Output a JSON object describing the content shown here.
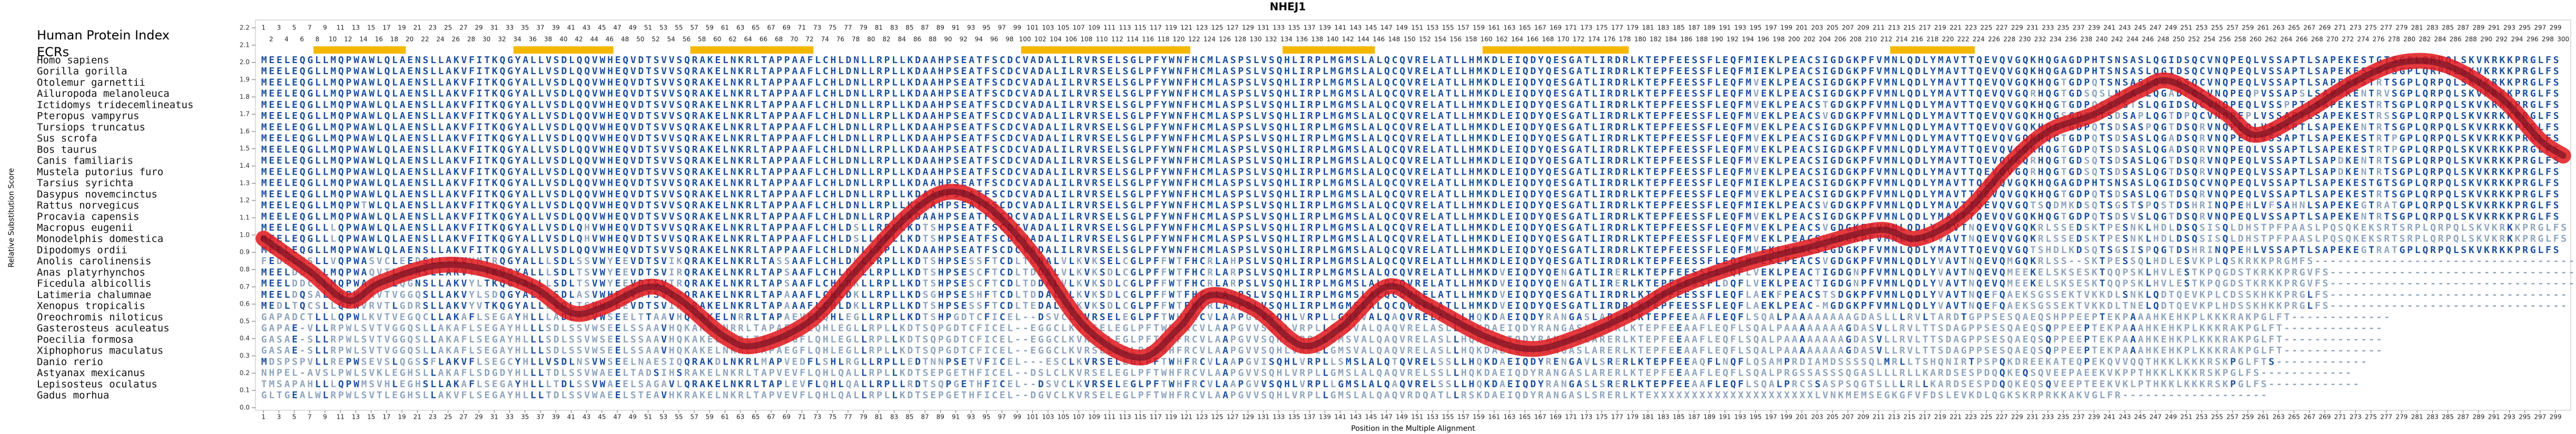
{
  "chart_data": {
    "type": "line",
    "title": "NHEJ1",
    "ylabel": "Relative Substitution Score",
    "xlabel": "Position in the Multiple Alignment",
    "color": "#e0161b",
    "xlim": [
      1,
      300
    ],
    "ylim": [
      0,
      2.2
    ],
    "yticks": [
      {
        "value": 0,
        "label": "0.0"
      },
      0.1,
      0.2,
      0.3,
      0.4,
      0.5,
      0.6,
      0.7,
      0.8,
      0.9,
      {
        "value": 1,
        "label": "1.0"
      },
      1.1,
      1.2,
      1.3,
      1.4,
      1.5,
      1.6,
      1.7,
      1.8,
      1.9,
      {
        "value": 2,
        "label": "2.0"
      },
      2.1,
      2.2
    ],
    "xticks": [
      1,
      2,
      3,
      4,
      5,
      6,
      7,
      8,
      9,
      10,
      11,
      12,
      13,
      14,
      15,
      16,
      17,
      18,
      19,
      20,
      21,
      22,
      23,
      24,
      25,
      26,
      27,
      28,
      29,
      30,
      31,
      32,
      33,
      34,
      35,
      36,
      37,
      38,
      39,
      40,
      41,
      42,
      43,
      44,
      45,
      46,
      47,
      48,
      49,
      50,
      51,
      52,
      53,
      54,
      55,
      56,
      57,
      58,
      59,
      60,
      61,
      62,
      63,
      64,
      65,
      66,
      67,
      68,
      69,
      70,
      71,
      72,
      73,
      74,
      75,
      76,
      77,
      78,
      79,
      80,
      81,
      82,
      83,
      84,
      85,
      86,
      87,
      88,
      89,
      90,
      91,
      92,
      93,
      94,
      95,
      96,
      97,
      98,
      99,
      100,
      101,
      102,
      103,
      104,
      105,
      106,
      107,
      108,
      109,
      110,
      111,
      112,
      113,
      114,
      115,
      116,
      117,
      118,
      119,
      120,
      121,
      122,
      123,
      124,
      125,
      126,
      127,
      128,
      129,
      130,
      131,
      132,
      133,
      134,
      135,
      136,
      137,
      138,
      139,
      140,
      141,
      142,
      143,
      144,
      145,
      146,
      147,
      148,
      149,
      150,
      151,
      152,
      153,
      154,
      155,
      156,
      157,
      158,
      159,
      160,
      161,
      162,
      163,
      164,
      165,
      166,
      167,
      168,
      169,
      170,
      171,
      172,
      173,
      174,
      175,
      176,
      177,
      178,
      179,
      180,
      181,
      182,
      183,
      184,
      185,
      186,
      187,
      188,
      189,
      190,
      191,
      192,
      193,
      194,
      195,
      196,
      197,
      198,
      199,
      200,
      201,
      202,
      203,
      204,
      205,
      206,
      207,
      208,
      209,
      210,
      211,
      212,
      213,
      214,
      215,
      216,
      217,
      218,
      219,
      220,
      221,
      222,
      223,
      224,
      225,
      226,
      227,
      228,
      229,
      230,
      231,
      232,
      233,
      234,
      235,
      236,
      237,
      238,
      239,
      240,
      241,
      242,
      243,
      244,
      245,
      246,
      247,
      248,
      249,
      250,
      251,
      252,
      253,
      254,
      255,
      256,
      257,
      258,
      259,
      260,
      261,
      262,
      263,
      264,
      265,
      266,
      267,
      268,
      269,
      270,
      271,
      272,
      273,
      274,
      275,
      276,
      277,
      278,
      279,
      280,
      281,
      282,
      283,
      284,
      285,
      286,
      287,
      288,
      289,
      290,
      291,
      292,
      293,
      294,
      295,
      296,
      297,
      298,
      299,
      300
    ],
    "x": [
      1,
      7,
      12,
      16,
      23,
      29,
      36,
      41,
      45,
      51,
      55,
      61,
      65,
      72,
      78,
      85,
      90,
      95,
      101,
      108,
      115,
      120,
      124,
      130,
      136,
      141,
      147,
      152,
      160,
      166,
      172,
      179,
      185,
      194,
      202,
      211,
      216,
      222,
      228,
      233,
      239,
      245,
      249,
      256,
      260,
      266,
      273,
      279,
      285,
      292,
      297,
      300
    ],
    "values": [
      0.98,
      0.79,
      0.62,
      0.72,
      0.82,
      0.81,
      0.7,
      0.55,
      0.58,
      0.7,
      0.63,
      0.41,
      0.36,
      0.5,
      0.79,
      1.12,
      1.25,
      1.17,
      0.89,
      0.46,
      0.29,
      0.46,
      0.65,
      0.57,
      0.36,
      0.46,
      0.7,
      0.6,
      0.41,
      0.34,
      0.41,
      0.55,
      0.7,
      0.84,
      0.93,
      1.03,
      0.98,
      1.12,
      1.41,
      1.6,
      1.7,
      1.84,
      1.89,
      1.71,
      1.58,
      1.7,
      1.89,
      2.0,
      1.98,
      1.79,
      1.55,
      1.46
    ]
  },
  "alignment": {
    "index_label": "Human Protein Index",
    "ecr_label": "ECRs",
    "ecrs": [
      [
        8,
        19
      ],
      [
        34,
        46
      ],
      [
        57,
        72
      ],
      [
        100,
        121
      ],
      [
        134,
        145
      ],
      [
        160,
        178
      ],
      [
        213,
        223
      ]
    ],
    "species": [
      "Homo sapiens",
      "Gorilla gorilla",
      "Otolemur garnettii",
      "Ailuropoda melanoleuca",
      "Ictidomys tridecemlineatus",
      "Pteropus vampyrus",
      "Tursiops truncatus",
      "Sus scrofa",
      "Bos taurus",
      "Canis familiaris",
      "Mustela putorius furo",
      "Tarsius syrichta",
      "Dasypus novemcinctus",
      "Rattus norvegicus",
      "Procavia capensis",
      "Macropus eugenii",
      "Monodelphis domestica",
      "Dipodomys ordii",
      "Anolis carolinensis",
      "Anas platyrhynchos",
      "Ficedula albicollis",
      "Latimeria chalumnae",
      "Xenopus tropicalis",
      "Oreochromis niloticus",
      "Gasterosteus aculeatus",
      "Poecilia formosa",
      "Xiphophorus maculatus",
      "Danio rerio",
      "Astyanax mexicanus",
      "Lepisosteus oculatus",
      "Gadus morhua"
    ],
    "sequences": [
      "MEELEQGLLMQPWAWLQLAENSLLAKVFITKQGYALLVSDLQQVWHEQVDTSVVSQRAKELNKRLTAPPAAFLCHLDNLLRPLLKDAAHPSEATFSCDCVADALILRVRSELSGLPFYWNFHCMLASPSLVSQHLIRPLMGMSLALQCQVRELATLLHMKDLEIQDYQESGATLIRDRLKTEPFEESSFLEQFMIEKLPEACSIGDGKPFVMNLQDLYMAVTTQEVQVGQKHQGAGDPHTSNSASLQGIDSQCVNQPEQLVSSAPTLSAPEKESTGTSGPLQRPQLSKVKRKKPRGLFS",
      "MEELEQGLLMQPWAWLQLAENSLLAKVFITKQGYALLVSDLQQVWHEQVDTSVVSQRAKELNKRLTAPPAAFLCHLDNLLRPLLKDAAHPSEATFSCDCVADALILRVRSELSGLPFYWNFHCMLASPSLVSQHLIRPLMGMSLALQCQVRELATLLHMKDLEIQDYQESGATLIRDRLKTEPFEESSFLEQFMIEKLPEACSIGDGKPFVMNLQDLYMAVTTQEVQVGQKHQGAGDPHTSNSASLQGIDSQCVNQPEQLVSSAPTLSAPEKESTGTSGPLQRPQLSKVKRKKPRGLFS",
      "MEELEQGLLMQPWAWLQLAENSLLAKVFITKQGYALLVSDLQQVWHEQVDTSVVSQRAKELNKRLTAPPAAFLCHLDNLLRPLLKDAAHPSEATFSCDCVADALILRVRSELSGLPFYWNFHCMLASPSLVSQHLIRPLMGMSLALQCQVRELATLLHMKDLEIQDYQESGATLIRDRLKTEPFEESSFLEQFMVEKLPEACSIGDGKPFVMNLQDLYMAVTTQEVQVGQKHQGTGDPQTSNSASLQGTDSQCVNQPEQLVSSAPTLSAPEKESTRTSGPLQRPQLSKVKRKKPRGLFS",
      "MEELEQGLLMQPWAWLQLAENSLLAKVFITKQGYALLVSDLQQVWHEQVDTSVVSQRAKELNKRLTAPPAAFLCHLDNLLRPLLKDAAHPSEATFSCDCVADALILRVRSELSGLPFYWNFHCMLASPSLVSQHLIRPLMGMSLALQCQVRELATLLHMKDLEIQDYQESGATLIRDRLKTEPFEESSFLEQFMVEKLPEACSIGDGKPFVMNLQDLYMAVTTQEVQVGQRHQGTGDSQSLNTATLQGADPQCVNQPEQPVSSAPSLSAPDKENTRVSGPLQRPQLSKVKRKKPRGLFS",
      "MEELEQGLLMQPWAWLQLAENSLLAKVFITKQGYALLVSDLQQVWHEQVDTSVVSQRAKELNKRLTAPPAAFLCHLDNLLRPLLKDAAHPSEATFSCDCVADALILRVRSELSGLPFYWNFHCMLASPSLVSQHLIRPLMGMSLALQCQVRELATLLHMKDLEIQDYQESGATLIRDRLKTEPFEESSFLEQFMVEKLPEACSTGDGKPFVMNLQDLYMAVTTQEVQVGQKHQGTGDPQSSDSTSLQGIDSQCVNQPEQLVSSPPTLSAPEKESTRTSGPLQRPQLSKVKRKKPRGLFS",
      "MEELEQGLLMQPWAWLQLAENSLLAKVFITKQGYALLVSDLQQVWHEQVDTSVVSQRAKELNKRLTAPPAAFLCHLDNLLRPLLKDAAHPSEATFSCDCVADALILRVRSELSGLPFYWNFHCMLASPSLVSQHLIRPLMGMSLALQCQVRELATLLHMKDLEIQDYQESGATLIRDRLKTEPFEESSFLEQFMVEKLPEACSVGDGKPFVMNLQDLYMAVTTQEVQVGQKHQGSGDSQTSDSAPLQGTDPQCVNQPEPLVSSAPTLSAPEKESTRSSGPLQRPQLSKVKRKKPRGLFS",
      "MEELEQGLLMQPWAWLQLAENSLLAKVFITKQGYALLVSDLQQVWHEQVDTSVVSQRAKELNKRLTAPPAAFLCHLDNLLRPLLKDAAHPSEATFSCDCVADALILRVRSELSGLPFYWNFHCMLASPSLVSQHLIRPLMGMSLALQCQVRELATLLHMKDLEIQDYQESGATLIRDRLKTEPFEESSFLEQFMVEKLPEACSIGDGKPFVMNLQDLYMAVTTQEVQVGQKHQGTGDPQTSDSASPQGTDSQRVNQPEQLVSSAPTLSAPEKENTRTSGPLQRPQLSKVKRKKPRGLFS",
      "MEELEQGLLMQPWAWLQLAENSLLAKVFITKQGYALLVSDLQQVWHEQVDTSVVSQRAKELNKRLTAPPAAFLCHLDNLLRPLLKDAAHPSEATFSCDCVADALILRVRSELSGLPFYWNFHCMLASPSLVSQHLIRPLMGMSLALQCQVRELATLLHMKDLEIQDYQESGATLIRDRLKTEPFEESSFLEQFMVEKLPEACSIGDGKPFVMNLQDLYMAVTTQEVQVGQKHQGTGDPQTSDSASLQGADSQRVNQPEQLVSSAPTLSAPEKESTRTPGPLQRPQLSKVKRKKPRGLFS",
      "MEELEQGLLMQPWAWLQLAENSLLAKVFITKQGYALLVSDLQQVWHEQVDTSVVSQRAKELNKRLTAPPAAFLCHLDNLLRPLLKDAAHPSEATFSCDCVADALILRVRSELSGLPFYWNFHCMLASPSLVSQHLIRPLMGMSLALQCQVRELATLLHMKDLEIQDYQESGATLIRDRLKTEPFEESSFLEQFMVEKLPEACSIGDGKPFVMNLQDLYMAVTTQEVQVGQKHQGTGDPQTSDSASLQGADSQRVNQPEQLVSSAPTLSAPEKESTRTPGPLQRPQLSKVKRKKPRGLFS",
      "MEELEQGLLMQPWAWLQLAENSLLAKVFITKQGYALLVSDLQQVWHEQVDTSVVSQRAKELNKRLTAPPAAFLCHLDNLLRPLLKDAAHPSEATFSCDCVADALILRVRSELSGLPFYWNFHCMLASPSLVSQHLIRPLMGMSLALQCQVRELATLLHMKDLEIQDYQESGATLIRDRLKTEPFEESSFLEQFMVEKLPEACSIGDGKPFVMNLQDLYMAVTTQEVQVGQRHQGTGDSQTSDSASLQGTDSQRVNQPEQLVSSAPTLSAPDKENTRTSGPLQRPQLSKVKRKKPRGLFS",
      "MEELEQGLLMQPWAWLQLAENSLLAKVFITKQGYALLVSDLQQVWHEQVDTSVVSQRAKELNKRLTAPPAAFLCHLDNLLRPLLKDAAHPSEATFSCDCVADALILRVRSELSGLPFYWNFHCMLASPSLVSQHLIRPLMGMSLALQCQVRELATLLHMKDLEIQDYQESGATLIRDRLKTEPFEESSFLEQFMVEKLPEACSIGDGKPFVMNLQDLYMAVTTQEVQVGQRHQGTGDSQTSDSASLQGTDSQRVNQPEQLVSSAPTLSAPDKENTRTSGPLQRPQLSKVKRKKPRGLFS",
      "MEELEQGLLMQPWAWLQLAENSLLAKVFITKQGYALLVSDLQQVWHEQVDTSVVSQRAKELNKRLTAPPAAFLCHLDNLLRPLLKDAAHPSEATFSCDCVADALILRVRSELSGLPFYWNFHCMLASPSLVSQHLIRPLMGMSLALQCQVRELATLLHMKDLEIQDYQESGATLIRDRLKTEPFEESSFLEQFMIEKLPEACSIGDGKPFVMNLQDLYMAVTTQEVQVGQKHQGAGDPHTSNSASLQGIDSQCVNQPEQLVSSAPTLSAPEKESTGTSGPLQRPQLSKVKRKKPRGLFS",
      "MEELEQGLLMQPWAWLQLAENSLLAKVFITKQGYALLVSDLQQVWHEQVDTSVVSQRAKELNKRLTAPPAAFLCHLDNLLRPLLKDAAHPSEATFSCDCVADALILRVRSELSGLPFYWNFHCMLASPSLVSQHLIRPLMGMSLALQCQVRELATLLHMKDLEIQDYQESGATLIRDRLKTEPFEESSFLEQFMVEKLPEACSIGDGKPFVMNLQDLYMAVTTQEVQVGQKHQGTGDPQTSDSASLQGTDSQRVNQPEQLVSSAPTLSAPEKESTRTSGPLQRPQLSKVKRKKPRGLFS",
      "MEELEQGLLMQPWTWLQLAENSLLAKVFITKQGYALLVSDLQQVWHEQVDTSVVSQRAKELNKRLTAPPAAFLCHLDNLLRPLLKDTAHPSEATFSCDCVADALILRVRSELSGLPFYWNFHCMLASPSLVSQHLIRPLMGMSLALQCQVRELATLLHMKDLEIQDYQESGATLIRDRLKTEPFEESSFLEQFMIEKLPEACSVGDGKPFVMNLQDLYMAVTTQEVQVGQTSQDMKDSQTSGSTSPQSTDSHRINQPEHLVFSAHNLSAPEKEGTRATGPLQRPQLSKVKRKKPRGLFS",
      "MEELEQGLLMQPWAWLQLAENSLLAKVFITKQGYALLVSDLQQVWHEQVDTSVVSQRAKELNKRLTAPPAAFLCHLDNLLRPLLKDAAHPSEATFSCDCVADALILRVRSELSGLPFYWNFHCMLASPSLVSQHLIRPLMGMSLALQCQVRELATLLHMKDLEIQDYQESGATLIRDRLKTEPFEESSFLEQFMVEKLPEACSIGDGKPFVMNLQDLYMAVTTQEVQVGQKHQGTGDPQTSDSVSLQGTDSQRVNQPEQLVSSAPTLSAPEKENTRTSGPLQRPQLSKVKRKKPRGLFS",
      "MEELEQGLLLQPWAWLQLAENSLLAKVFITKQGYALLVSDLQHVWHEQVDTSVVSQRAKELNKRLTAPPAAFLCHLDSLLRPLLKDTSHPSEATFSCDCVADALILRVRSELSGLPFYWNFHCMLASPSLVSQHLIRPLMGMSLALQCQVRELATLLHMKDLEIQDYQESGATLIRDRLKTEPFEESSFLEQFMVEKLPEACSVGDGKPFVMNLQDLYVAVTNQEVQVGQKRLSSEDSKTPESNKLHDLDSQSISQLDHSTPFPAASLPQSQKEKSRTSRPLQRPQLSKVKRKKPRGLFS",
      "MEELEQGLLLQPWAWLQLAENSLLAKVFITKQGYALLVSDLQHVWHEQVDTSVVSQRAKELNKRLTAPPAAFLCHLDSLLRPLLKDTSHPSEATFSCDCVADALILRVRSELSGLPFYWNFHCMLASPSLVSQHLIRPLMGMSLALQCQVRELATLLHMKDLEIQDYQESGATLIRDRLKTEPFEESSFLEQFMVEKLPEACSVGDGKPFVMNLQDLYVAVTNQEVQVGQKRLSSEDSKTPESNKLHDLDSQSISQLDHSTPFPAASLPQSQKEKSRTSRPLQRPQLSKVKRKKPRGLFS",
      "MEELEQGLLMQPWAWLQLAENSLLAKVFITKQGYALLVSDLQQVWHEQVDTSVVSQRAKELNKRLTAPPAAFLCHLDNLLRPLLKDAAHPSEATFSCDCVADALILRVRSELSGLPFYWNFHCMLASPSLVSQHLIRPLMGMSLALQCQVRELATLLHMKDLEIQDYQESGATLIRDRLKTEPFEESSFLEQFMVEKLPEACSIGDGKPFVMNLQDLYMAVTTQEVQVGQTSHDLKDSQTSGSISPQGTDSHRINQPEHLVSSAPTLSAPEKEGTRATGPLQRPQLSKVKRKKPRGLFS",
      "FEDMLNSLLVQPWASVCLEEDSLLSKVYMTRQGYALLLSDLSSVWYEEVDTSVIKQRAKELNKRLTASSAAFLCHLDKLLRPLLKDTSHPSESSFTCDLTDDALVLKVKSELCGLPFFWTFHCRLAHPSLVSQHLIRPLMGMSLALQCQVRELATLLHMKDLEIQDYQESGATLIRDRLKTEPFEESSFLEQFMVEKLPEACSVGDGKPFVMNLQDLYVAVTNQEVQMGQKRLSS--SKTPESSQLHDLESVKPLQSKRKKPRGMFS-------------------------------------",
      "MEELDDCSLMQPWAQVTLQGNSLLAKVYLTKQGYALLLSDLTSVWYEEVDTSVIRQRAKELNKRLTAPSAAFLCHLDKLLRPLLKDTSHPSESCFTCDLTDDALVLKVKSDLCGLPFFWTFHCRLARPSLVSQHLIRPLMGMSLALQCQVRELATLLHMKDVEIQDYQENGATLIRERLKTEPFEESSFLDQFLVEKLPEACTIGDGNPFVMNLQDLYVAVTNQEVQMEEKELSKSESKTQQPSKLHVLESTKPQGDSTKRKKPRGVFS----------------------------------",
      "MEELDDCSLMQPWAQVTLQGNSLLAKVYLTKQGYALLLSDLTSVWYEEVDTSVIRQRAKELNKRLTAPSAAFLCHLDKLLRPLLKDTSHPSESCFTCDLTDDALVLKVKSDLCGLPFFWTFHCRLARPSLVSQHLIRPLMGMSLALQCQVRELATLLHMKDVEIQDYQENGATLIRERLKTEPFEESSFLDQFLVEKLPEACTIGDGNPFVMNLQDLYVAVTNQEVQMEEKELSKSESKTQQPSKLHVLESTKPQGDSTKRKKPRGVFS----------------------------------",
      "MEELDQSALLQPWTRVTVGGQSLLAKVYLSDQGYALLLSDLASVWHEEVHTSVIRQRAKELNKRLTAPAAAFLCHLDKLLRPLLKDSGHPSESHFTCDLTDDALVLKVKSDLCGLPFFWTFHCRLAHPSLVSQHLIRPLMGMSLALQCQVRELATLLHMKDVEIQDYQESGATLIRDRLKTEPFEESSFLEQFLAEKFPEACSTSDGKPFVMNLQDLYVAVTNQEFQAEKSGSSEKTVKKDLSNKLQDTQEVKPLCDSSKHKKPRGLFS-------------------------------",
      "MEDLTQCSLLQPWVRVTLGDRSLLAKVYVTKQGYALLLSDLTSVWYEEVDTSVIRERAKELNKRLTAPAAAFLCHLDKLLRPLLKDTSHPSESSFTCDLTEDALVLKVKSDLCGLPFFWTFHCRLARPSLVSQHLIRPLMGMSLALQCQVRELATLLHMKDVEIQDYQESGATLIRDRLKTEPFEESSFLEQFLAEKLPEAC-MGDGKPFVMNLQDLYVAVTNQEFQAEKSGSSEKTVKKDLTNELQDTQEVKPLHDSSKHKKPRGLFS-------------------------------",
      "GAPADCTLLLQPWLKVTVEGQCLLAKAFLSEGAYHLLLADLASVWSEELTTAAVHQKAKELNRRLTAPAEVFLQHLEGLLRPLLKDTSHPGDTCFICEL--DSVCLKVRSELEGLPFTWHFRCVLAAPGVVSQHLVRPLLGMSVALQAQVRELASLLHQKDAEIQDYRANGASLARERLKTEPFEEAAFLEQFLSQALPAAAAAAAAGDASLLLRVLTARDTGPPSESQAEQSHPPEEPTEKPAAAHKEHKPLKKKRAKPGLFT-------------",
      "GAPAE-VLLRPWLSVTVGGQSLLAKAFLSEGAYHLLLSDLSSVWSEELSSAAVHQKAKELNRRLTAPAEGFLQHLEGLLRPLLKDTSQPGDTCFICEL--EGGCLKVRSELEGLPFTWHFRCVLAAPGVVSQHLVRPLLGMSVALQAQVRELASLLHQKDAEIQDYRANGASLARERLKTEPFEEAAFLEQFLSQALPAAAAAAAAGDASVLLRVLTTSDAGPPSESQAEQSQPPEEPTEKPAAAHKEHKPLKKKRAKPGLFT-------------",
      "GASAE-SLLRPWLSVTVGGQSLLAKAFLSEGAYHLLLSDLSSVWSEELSSAAVHQKAKELNRRLTAPAEGFLQHLEGLLRPLLKDTSQPGDTCFICEL--EGGCLKVRSELEGLPFTWHFRCVLAAPGVVSQHLVRPLLGMSVALQAQVRELASLLHQKDAEIQDYRANGASLARERLKTEPFEEAAFLEQFLSQALPAAAAAAAAGDASVLLRVLTTSDAGPPSESQAEQSQPPEEPTEKPAAAHKEHKPLKKKRAKPGLFT-------------",
      "GASAE-SLLRPWLSVTVGGQSLLAKAFLSEGAYHLLLSDLSSVWSEELSSAAVHQKAKELNRRLTAPAEGFLQHLEGLLRPLLKDTSQPGDTCFICEL--EGGCLKVRSELEGLPFTWHFRCVLAAPGVVSQHLVRPLLGMSVALQAQVRELASLLHQKDAEIQDYRANGASLARERLKTEPFEEAAFLEQFLSQALPAAAAAAAAGDASVLLRVLTTSDAGPPSESQAEQSQPPEEPTEKPAAAHKEHKPLKKKRAKPGLFT-------------",
      "MDSPSPVLLREPWSEVSLQGSSFLAKVFLSEGCYHLLVSDLNSVWSEELNAESIQQRAKDLNKRLMAPVEDFLSHLRGLLRPLLEDTNNPSETVFICEL---ESCLKVRSELEGLPFTWHFRCVLAAPGVISQHLVRPLLSMSLALQTQVRELSSLLHQKDAEIQDYRENGAVLSRERLKTEPFEEAQFLNQFLQSAMPRDIAMDSSSSQLMRLLTSHQNIRTPSPQKDREEKATEQPEKQVVQQTHKKLKKKRSKPGLFTS------------",
      "NHPEL-AVSLPWLSVKLEGHSLLAKAFLSDGDYHLLLTDLSSVWAEELTADSIHSRAKELNKRLTAPVEVFLQHLQALLRPLLKDTSEPGETHFICEL--DSLCLKVRSELEGLPFTWHFRCVLAAPGVVSQHLVRPLLGMSLALQAQVRELSSLLHQKDAEIQDYRANGASLARERLKTEPFEEAAFLEQFLSQALPRGSSASSSQGASLLLRLLKARDSESPDQQKEQSQVEEPAEEKVKPPTHKKLKKKRSKPGLFS------------",
      "TMSAPAHLLLQPWMSVHLEGHSLLAKAFLSEGAYHLLLTDLSSVWAEELSAGAVLQRAKELNKRLTAPLEVFLQHLQALLRPLLRDTSQPGETHFICEL--DSVCLKVRSELEGLPFTWHFRCVLAAPGVVSQHLVRPLLGMSLALQAQVRELSSLLHQKDAEIQDYRANGASLSRERLKTEPFEEAAFLEQFLSQALPRCSSASPSQGTSLLLRLLKARDSESPDQQKEQSQVEEPTEEKVKLPTHKKLKKKRSKPGLFS------------",
      "GLTGEALWLRPWLSVTLEGHSLLAKVFLSEGAYHLLLTDLSSVWAEELSTEAVHKRAKELNKRLTAPVEVFLQHLQALLRPLLKDTSEPGETHFICEL--DGVCLKVRSELEGLPFTWHFRCVLAAPGVVSQHLVRPLLGMSLALQAQVRDQATLLRSKDAEIQDYRANGASLSRERLKTEXXXXXXXXXXXXXXXXXXXXXLVNKMEMSEGKGFVFDSLEVKDLQGKSKRPRKKAKVGLFR-------------------"
    ]
  }
}
